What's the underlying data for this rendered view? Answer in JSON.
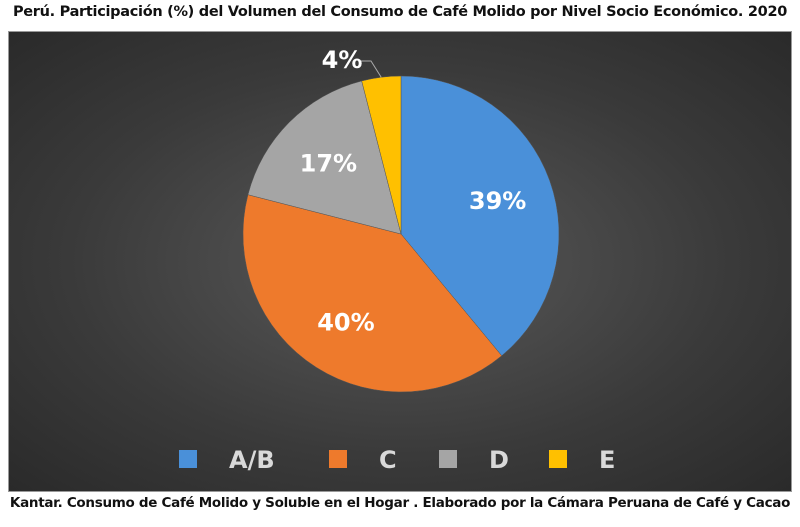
{
  "chart_data": {
    "type": "pie",
    "title": "Perú. Participación (%) del Volumen del Consumo de Café Molido por Nivel Socio Económico. 2020",
    "categories": [
      "A/B",
      "C",
      "D",
      "E"
    ],
    "values": [
      39,
      40,
      17,
      4
    ],
    "data_labels": [
      "39%",
      "40%",
      "17%",
      "4%"
    ],
    "colors": [
      "#4a90d9",
      "#ee7a2c",
      "#a5a5a5",
      "#ffc000"
    ],
    "legend_position": "bottom",
    "start_angle": "top, clockwise"
  },
  "footer": "Kantar. Consumo de Café Molido y Soluble en el Hogar . Elaborado por la Cámara Peruana de Café y Cacao"
}
